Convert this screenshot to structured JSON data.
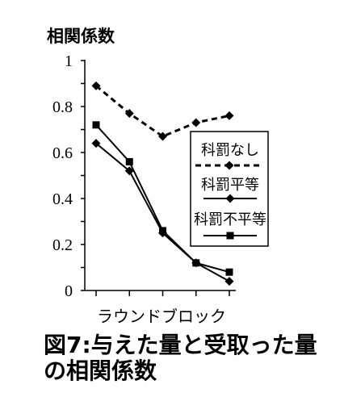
{
  "chart_data": {
    "type": "line",
    "ylabel": "相関係数",
    "xlabel": "ラウンドブロック",
    "ylim": [
      0,
      1
    ],
    "yticks": [
      {
        "value": 0,
        "label": "0"
      },
      {
        "value": 0.2,
        "label": "0.2"
      },
      {
        "value": 0.4,
        "label": "0.4"
      },
      {
        "value": 0.6,
        "label": "0.6"
      },
      {
        "value": 0.8,
        "label": "0.8"
      },
      {
        "value": 1,
        "label": "1"
      }
    ],
    "grid": false,
    "legend": "center-right",
    "series": [
      {
        "name": "科罰なし",
        "values": [
          0.89,
          0.77,
          0.67,
          0.73,
          0.76
        ],
        "dashed": true,
        "marker": "diamond",
        "color": "#000000"
      },
      {
        "name": "科罰平等",
        "values": [
          0.64,
          0.52,
          0.25,
          0.12,
          0.04
        ],
        "dashed": false,
        "marker": "diamond",
        "color": "#000000"
      },
      {
        "name": "科罰不平等",
        "values": [
          0.72,
          0.56,
          0.26,
          0.12,
          0.08
        ],
        "dashed": false,
        "marker": "square",
        "color": "#000000"
      }
    ],
    "caption": [
      "図7:与えた量と受取った量",
      "の相関係数"
    ]
  }
}
